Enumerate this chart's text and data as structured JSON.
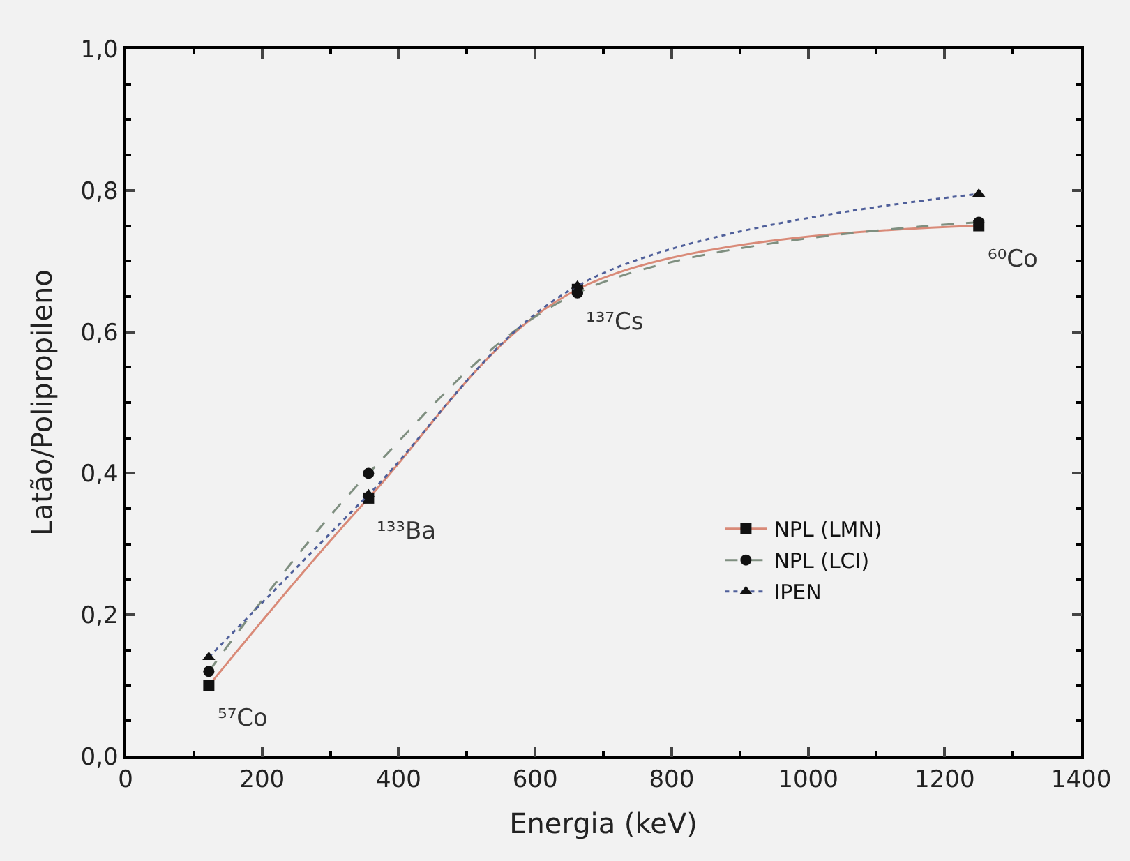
{
  "chart_data": {
    "type": "line",
    "xlabel": "Energia (keV)",
    "ylabel": "Latão/Polipropileno",
    "x": [
      122,
      356,
      662,
      1250
    ],
    "series": [
      {
        "name": "NPL (LMN)",
        "color": "#d98a78",
        "values": [
          0.1,
          0.365,
          0.66,
          0.75
        ],
        "marker": "square",
        "line_style": "solid"
      },
      {
        "name": "NPL (LCI)",
        "color": "#7f8f80",
        "values": [
          0.12,
          0.4,
          0.655,
          0.755
        ],
        "marker": "circle",
        "line_style": "dashed"
      },
      {
        "name": "IPEN",
        "color": "#4f5f9a",
        "values": [
          0.14,
          0.37,
          0.665,
          0.795
        ],
        "marker": "triangle",
        "line_style": "dotted"
      }
    ],
    "xlim": [
      0,
      1400
    ],
    "xticks": [
      0,
      200,
      400,
      600,
      800,
      1000,
      1200,
      1400
    ],
    "ylim": [
      0,
      1.0
    ],
    "yticks": [
      {
        "value": 0,
        "label": "0,0"
      },
      {
        "value": 0.2,
        "label": "0,2"
      },
      {
        "value": 0.4,
        "label": "0,4"
      },
      {
        "value": 0.6,
        "label": "0,6"
      },
      {
        "value": 0.8,
        "label": "0,8"
      },
      {
        "value": 1.0,
        "label": "1,0"
      }
    ],
    "annotations": [
      {
        "text": "⁵⁷Co",
        "x": 122,
        "y": 0.1
      },
      {
        "text": "¹³³Ba",
        "x": 356,
        "y": 0.365
      },
      {
        "text": "¹³⁷Cs",
        "x": 662,
        "y": 0.66
      },
      {
        "text": "⁶⁰Co",
        "x": 1250,
        "y": 0.75
      }
    ],
    "grid": false,
    "legend": "bottom right"
  }
}
